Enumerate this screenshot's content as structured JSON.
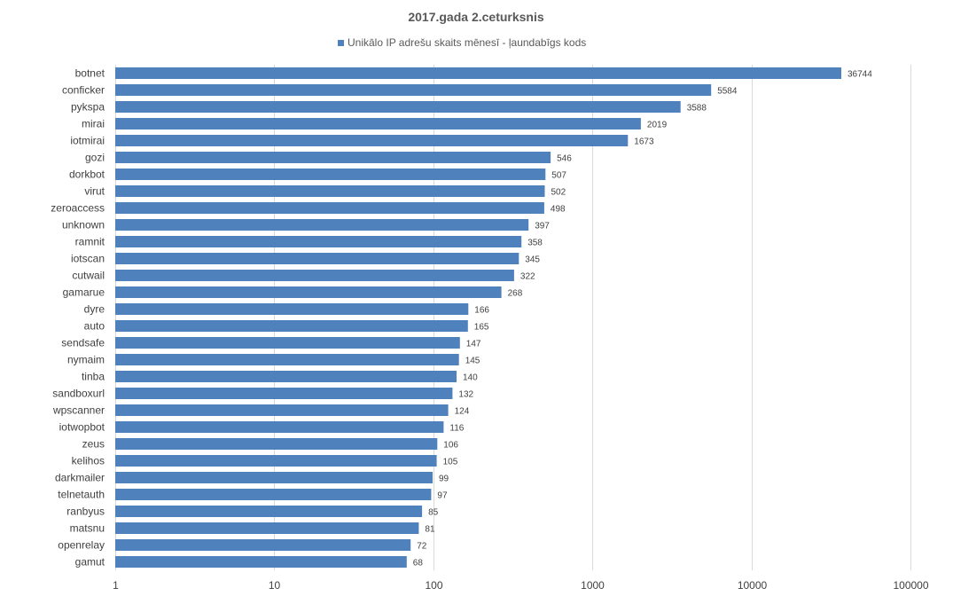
{
  "chart_data": {
    "type": "bar",
    "orientation": "horizontal",
    "title": "2017.gada 2.ceturksnis",
    "xscale": "log",
    "xlim": [
      1,
      100000
    ],
    "x_ticks": [
      "1",
      "10",
      "100",
      "1000",
      "10000",
      "100000"
    ],
    "grid": true,
    "legend_position": "top",
    "series": [
      {
        "name": "Unikālo IP adrešu skaits mēnesī -  ļaundabīgs kods",
        "color": "#4f81bd",
        "categories": [
          "botnet",
          "conficker",
          "pykspa",
          "mirai",
          "iotmirai",
          "gozi",
          "dorkbot",
          "virut",
          "zeroaccess",
          "unknown",
          "ramnit",
          "iotscan",
          "cutwail",
          "gamarue",
          "dyre",
          "auto",
          "sendsafe",
          "nymaim",
          "tinba",
          "sandboxurl",
          "wpscanner",
          "iotwopbot",
          "zeus",
          "kelihos",
          "darkmailer",
          "telnetauth",
          "ranbyus",
          "matsnu",
          "openrelay",
          "gamut"
        ],
        "values": [
          36744,
          5584,
          3588,
          2019,
          1673,
          546,
          507,
          502,
          498,
          397,
          358,
          345,
          322,
          268,
          166,
          165,
          147,
          145,
          140,
          132,
          124,
          116,
          106,
          105,
          99,
          97,
          85,
          81,
          72,
          68
        ]
      }
    ]
  }
}
